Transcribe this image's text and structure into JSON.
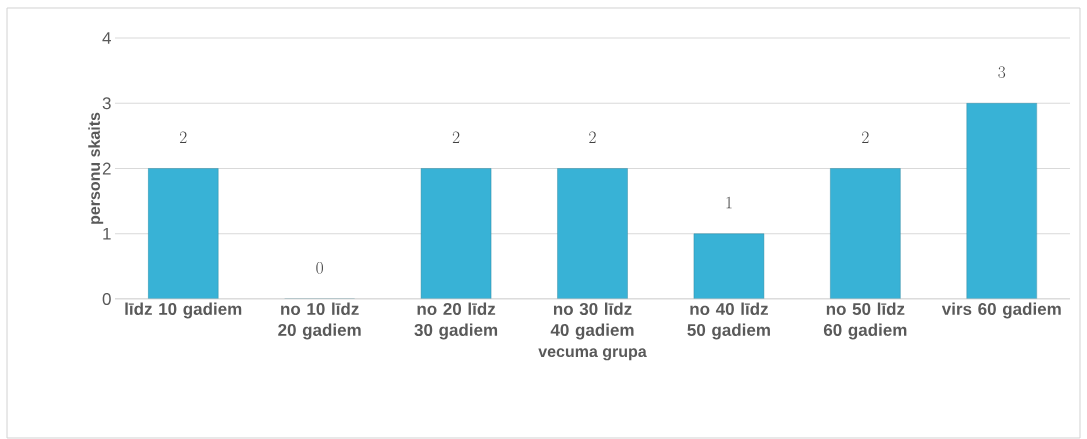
{
  "chart_data": {
    "type": "bar",
    "categories": [
      "līdz 10 gadiem",
      "no 10 līdz 20 gadiem",
      "no 20 līdz 30 gadiem",
      "no 30 līdz 40 gadiem",
      "no 40 līdz 50 gadiem",
      "no 50 līdz 60 gadiem",
      "virs 60 gadiem"
    ],
    "values": [
      2,
      0,
      2,
      2,
      1,
      2,
      3
    ],
    "color": "#38b2d6",
    "xlabel": "vecuma grupa",
    "ylabel": "personu skaits",
    "ylim": [
      0,
      4
    ],
    "yticks": [
      0,
      1,
      2,
      3,
      4
    ],
    "grid": "y",
    "data_labels": true
  }
}
